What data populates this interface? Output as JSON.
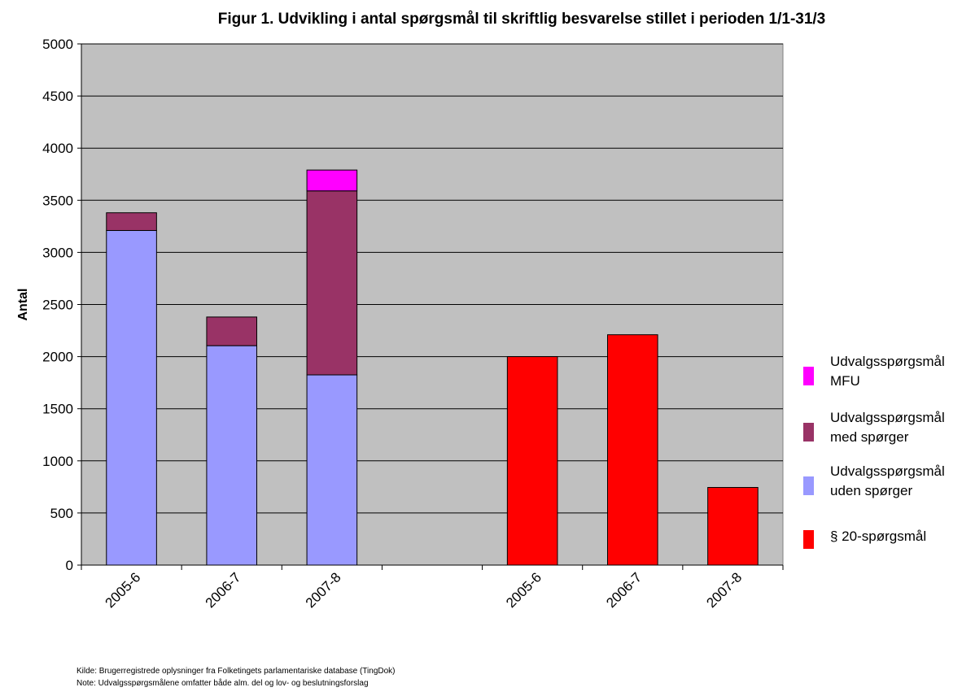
{
  "chart_data": {
    "type": "bar",
    "stacked": true,
    "title": "Figur 1. Udvikling i antal spørgsmål til skriftlig besvarelse stillet i perioden 1/1-31/3",
    "xlabel": "",
    "ylabel": "Antal",
    "ylim": [
      0,
      5000
    ],
    "yticks": [
      0,
      500,
      1000,
      1500,
      2000,
      2500,
      3000,
      3500,
      4000,
      4500,
      5000
    ],
    "categories": [
      "2005-6",
      "2006-7",
      "2007-8",
      "",
      "2005-6",
      "2006-7",
      "2007-8"
    ],
    "series": [
      {
        "name": "Udvalgsspørgsmål uden spørger",
        "color": "#9999ff",
        "values": [
          3210,
          2105,
          1825,
          null,
          null,
          null,
          null
        ]
      },
      {
        "name": "Udvalgsspørgsmål med spørger",
        "color": "#993366",
        "values": [
          170,
          275,
          1765,
          null,
          null,
          null,
          null
        ]
      },
      {
        "name": "Udvalgsspørgsmål MFU",
        "color": "#ff00ff",
        "values": [
          0,
          0,
          200,
          null,
          null,
          null,
          null
        ]
      },
      {
        "name": "§ 20-spørgsmål",
        "color": "#ff0000",
        "values": [
          null,
          null,
          null,
          null,
          2000,
          2210,
          745
        ]
      }
    ],
    "legend": {
      "position": "right",
      "order": [
        "Udvalgsspørgsmål MFU",
        "Udvalgsspørgsmål med spørger",
        "Udvalgsspørgsmål uden spørger",
        "§ 20-spørgsmål"
      ],
      "entries": [
        {
          "line1": "Udvalgsspørgsmål",
          "line2": "MFU",
          "color": "#ff00ff"
        },
        {
          "line1": "Udvalgsspørgsmål",
          "line2": "med spørger",
          "color": "#993366"
        },
        {
          "line1": "Udvalgsspørgsmål",
          "line2": "uden spørger",
          "color": "#9999ff"
        },
        {
          "line1": "§ 20-spørgsmål",
          "line2": "",
          "color": "#ff0000"
        }
      ]
    },
    "grid": true,
    "plot_background": "#c0c0c0"
  },
  "footnotes": {
    "source": "Kilde: Brugerregistrede oplysninger fra Folketingets parlamentariske database (TingDok)",
    "note": "Note: Udvalgsspørgsmålene omfatter både alm. del og lov- og beslutningsforslag"
  }
}
